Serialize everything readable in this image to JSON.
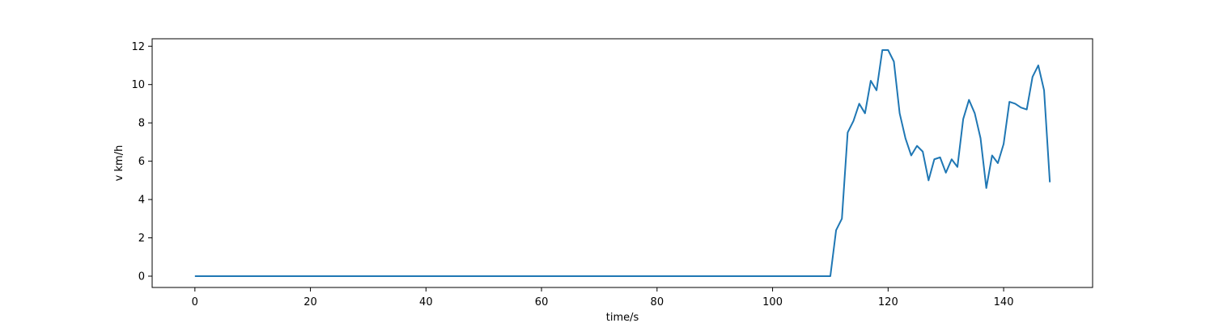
{
  "chart_data": {
    "type": "line",
    "title": "",
    "xlabel": "time/s",
    "ylabel": "v km/h",
    "xlim": [
      -7.4,
      155.4
    ],
    "ylim": [
      -0.59,
      12.39
    ],
    "xticks": [
      0,
      20,
      40,
      60,
      80,
      100,
      120,
      140
    ],
    "yticks": [
      0,
      2,
      4,
      6,
      8,
      10,
      12
    ],
    "xtick_labels": [
      "0",
      "20",
      "40",
      "60",
      "80",
      "100",
      "120",
      "140"
    ],
    "ytick_labels": [
      "0",
      "2",
      "4",
      "6",
      "8",
      "10",
      "12"
    ],
    "grid": false,
    "legend": "none",
    "colors": {
      "line": "#1f77b4",
      "axes": "#000000",
      "background": "#ffffff"
    },
    "series": [
      {
        "x": [
          0,
          1,
          2,
          3,
          4,
          5,
          6,
          7,
          8,
          9,
          10,
          11,
          12,
          13,
          14,
          15,
          16,
          17,
          18,
          19,
          20,
          21,
          22,
          23,
          24,
          25,
          26,
          27,
          28,
          29,
          30,
          31,
          32,
          33,
          34,
          35,
          36,
          37,
          38,
          39,
          40,
          41,
          42,
          43,
          44,
          45,
          46,
          47,
          48,
          49,
          50,
          51,
          52,
          53,
          54,
          55,
          56,
          57,
          58,
          59,
          60,
          61,
          62,
          63,
          64,
          65,
          66,
          67,
          68,
          69,
          70,
          71,
          72,
          73,
          74,
          75,
          76,
          77,
          78,
          79,
          80,
          81,
          82,
          83,
          84,
          85,
          86,
          87,
          88,
          89,
          90,
          91,
          92,
          93,
          94,
          95,
          96,
          97,
          98,
          99,
          100,
          101,
          102,
          103,
          104,
          105,
          106,
          107,
          108,
          109,
          110,
          111,
          112,
          113,
          114,
          115,
          116,
          117,
          118,
          119,
          120,
          121,
          122,
          123,
          124,
          125,
          126,
          127,
          128,
          129,
          130,
          131,
          132,
          133,
          134,
          135,
          136,
          137,
          138,
          139,
          140,
          141,
          142,
          143,
          144,
          145,
          146,
          147,
          148
        ],
        "values": [
          0,
          0,
          0,
          0,
          0,
          0,
          0,
          0,
          0,
          0,
          0,
          0,
          0,
          0,
          0,
          0,
          0,
          0,
          0,
          0,
          0,
          0,
          0,
          0,
          0,
          0,
          0,
          0,
          0,
          0,
          0,
          0,
          0,
          0,
          0,
          0,
          0,
          0,
          0,
          0,
          0,
          0,
          0,
          0,
          0,
          0,
          0,
          0,
          0,
          0,
          0,
          0,
          0,
          0,
          0,
          0,
          0,
          0,
          0,
          0,
          0,
          0,
          0,
          0,
          0,
          0,
          0,
          0,
          0,
          0,
          0,
          0,
          0,
          0,
          0,
          0,
          0,
          0,
          0,
          0,
          0,
          0,
          0,
          0,
          0,
          0,
          0,
          0,
          0,
          0,
          0,
          0,
          0,
          0,
          0,
          0,
          0,
          0,
          0,
          0,
          0,
          0,
          0,
          0,
          0,
          0,
          0,
          0,
          0,
          0,
          0,
          2.4,
          3.0,
          7.5,
          8.1,
          9.0,
          8.5,
          10.2,
          9.7,
          11.8,
          11.8,
          11.2,
          8.5,
          7.2,
          6.3,
          6.8,
          6.5,
          5.0,
          6.1,
          6.2,
          5.4,
          6.1,
          5.7,
          8.2,
          9.2,
          8.5,
          7.2,
          4.6,
          6.3,
          5.9,
          6.9,
          9.1,
          9.0,
          8.8,
          8.7,
          10.4,
          11.0,
          9.7,
          4.9
        ]
      }
    ]
  }
}
